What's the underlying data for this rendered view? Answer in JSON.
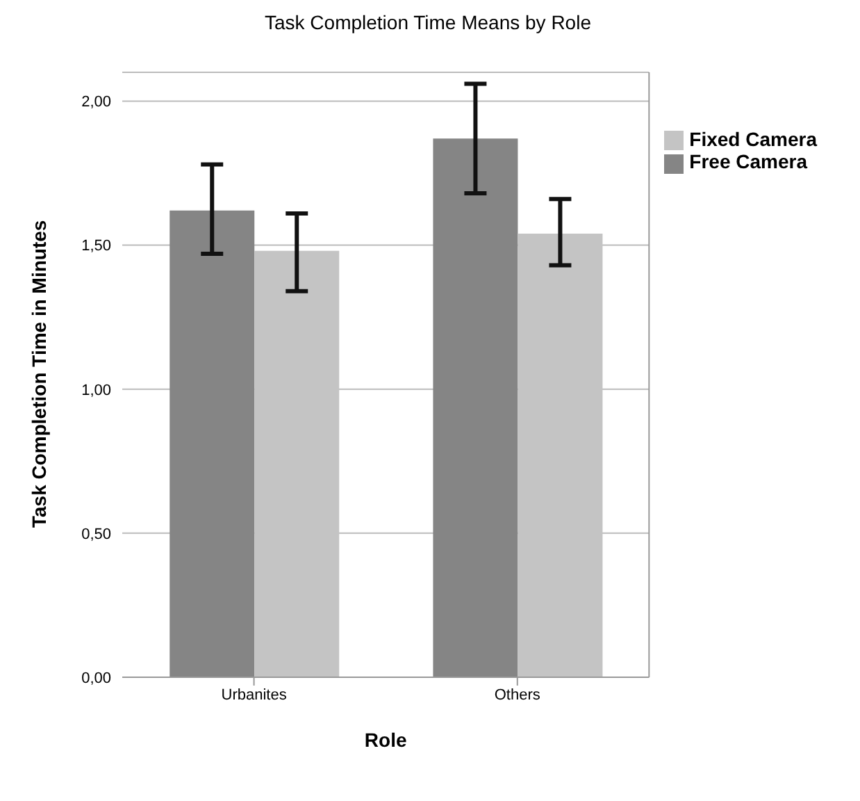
{
  "chart_data": {
    "type": "bar",
    "title": "Task Completion Time Means by Role",
    "xlabel": "Role",
    "ylabel": "Task Completion Time in Minutes",
    "categories": [
      "Urbanites",
      "Others"
    ],
    "series": [
      {
        "name": "Free Camera",
        "color": "#858585",
        "values": [
          1.62,
          1.87
        ],
        "errors": [
          [
            1.47,
            1.78
          ],
          [
            1.68,
            2.06
          ]
        ]
      },
      {
        "name": "Fixed Camera",
        "color": "#c4c4c4",
        "values": [
          1.48,
          1.54
        ],
        "errors": [
          [
            1.34,
            1.61
          ],
          [
            1.43,
            1.66
          ]
        ]
      }
    ],
    "ylim": [
      0,
      2.1
    ],
    "yticks": [
      {
        "value": 0,
        "label": "0,00"
      },
      {
        "value": 0.5,
        "label": "0,50"
      },
      {
        "value": 1,
        "label": "1,00"
      },
      {
        "value": 1.5,
        "label": "1,50"
      },
      {
        "value": 2,
        "label": "2,00"
      }
    ],
    "grid": "y",
    "legend": "right"
  }
}
